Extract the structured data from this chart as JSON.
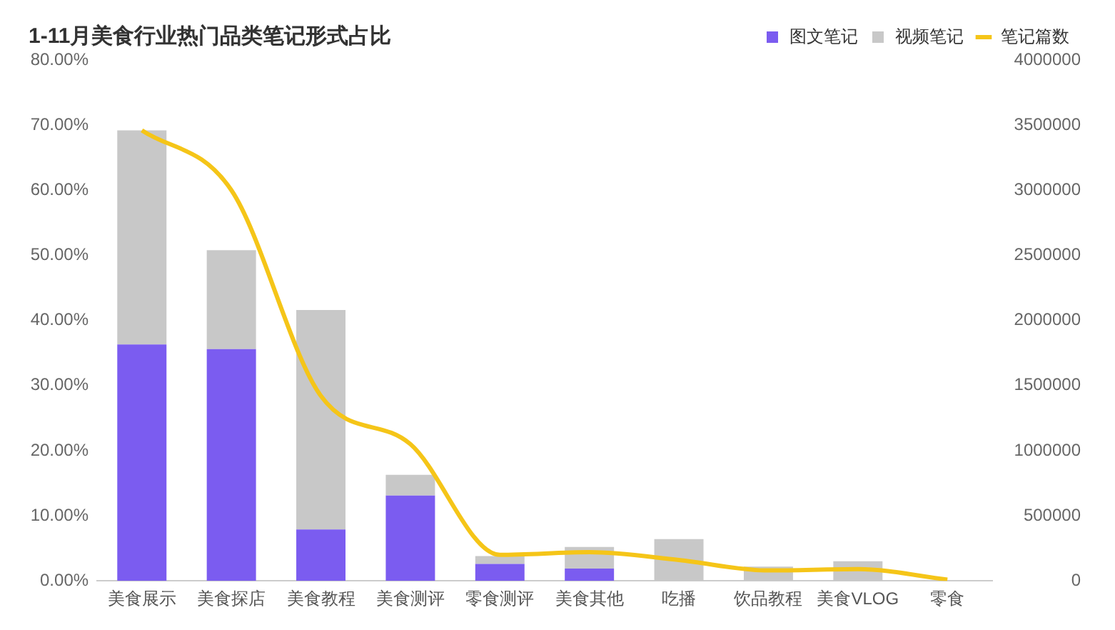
{
  "chart_data": {
    "type": "bar",
    "title": "1-11月美食行业热门品类笔记形式占比",
    "categories": [
      "美食展示",
      "美食探店",
      "美食教程",
      "美食测评",
      "零食测评",
      "美食其他",
      "吃播",
      "饮品教程",
      "美食VLOG",
      "零食"
    ],
    "stacked": true,
    "legend": "top right",
    "marker": "none",
    "series": [
      {
        "name": "图文笔记",
        "color": "#7b5cf0",
        "values": [
          36.3,
          35.6,
          7.9,
          13.1,
          2.6,
          1.9,
          0,
          0,
          0,
          0
        ]
      },
      {
        "name": "视频笔记",
        "color": "#c8c8c8",
        "values": [
          32.9,
          15.2,
          33.7,
          3.2,
          1.2,
          3.3,
          6.4,
          2.2,
          3.0,
          0
        ]
      },
      {
        "name": "笔记篇数",
        "type": "line",
        "axis": "y2",
        "color": "#f5c518",
        "values": [
          3460000,
          3000000,
          1420000,
          1050000,
          200000,
          220000,
          160000,
          80000,
          90000,
          10000
        ]
      }
    ],
    "ylim": [
      0,
      80
    ],
    "yticks": [
      {
        "value": 0,
        "label": "0.00%"
      },
      {
        "value": 10,
        "label": "10.00%"
      },
      {
        "value": 20,
        "label": "20.00%"
      },
      {
        "value": 30,
        "label": "30.00%"
      },
      {
        "value": 40,
        "label": "40.00%"
      },
      {
        "value": 50,
        "label": "50.00%"
      },
      {
        "value": 60,
        "label": "60.00%"
      },
      {
        "value": 70,
        "label": "70.00%"
      },
      {
        "value": 80,
        "label": "80.00%"
      }
    ],
    "y2lim": [
      0,
      4000000
    ],
    "y2ticks": [
      0,
      500000,
      1000000,
      1500000,
      2000000,
      2500000,
      3000000,
      3500000,
      4000000
    ]
  }
}
